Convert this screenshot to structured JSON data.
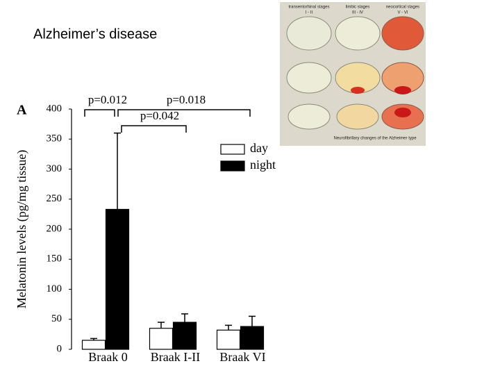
{
  "title": "Alzheimer’s disease",
  "figure_image": {
    "stage_labels": [
      {
        "name": "transentorhinal stages",
        "stages": "I - II"
      },
      {
        "name": "limbic stages",
        "stages": "III - IV"
      },
      {
        "name": "neocortical stages",
        "stages": "V - VI"
      }
    ],
    "caption": "Neurofibrillary changes of the Alzheimer type"
  },
  "chart_data": {
    "type": "bar",
    "panel_label": "A",
    "y_label": "Melatonin levels (pg/mg tissue)",
    "categories": [
      "Braak 0",
      "Braak I-II",
      "Braak VI"
    ],
    "series": [
      {
        "name": "day",
        "color": "#ffffff",
        "values": [
          15,
          35,
          32
        ],
        "errors": [
          3,
          10,
          8
        ]
      },
      {
        "name": "night",
        "color": "#000000",
        "values": [
          233,
          45,
          38
        ],
        "errors": [
          127,
          14,
          17
        ]
      }
    ],
    "ylim": [
      0,
      400
    ],
    "yticks": [
      0,
      50,
      100,
      150,
      200,
      250,
      300,
      350,
      400
    ],
    "annotations": [
      "p=0.012",
      "p=0.018",
      "p=0.042"
    ]
  }
}
